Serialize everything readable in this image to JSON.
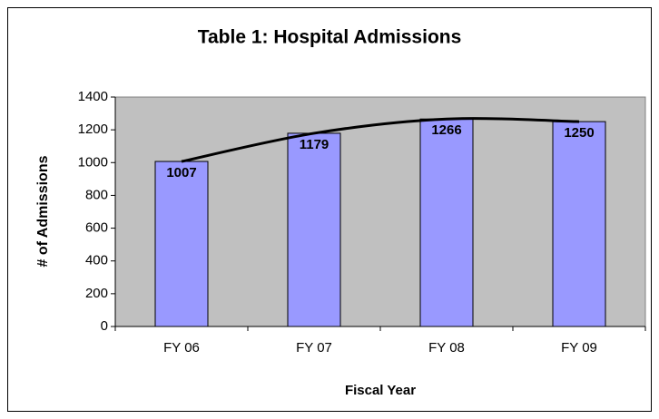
{
  "chart_data": {
    "type": "bar",
    "title": "Table 1: Hospital Admissions",
    "categories": [
      "FY 06",
      "FY 07",
      "FY 08",
      "FY 09"
    ],
    "values": [
      1007,
      1179,
      1266,
      1250
    ],
    "color": "#9999ff",
    "line_color": "#000000",
    "xlabel": "Fiscal Year",
    "ylabel": "# of Admissions",
    "ylim": [
      0,
      1400
    ],
    "yticks": [
      0,
      200,
      400,
      600,
      800,
      1000,
      1200,
      1400
    ],
    "grid": false,
    "trendline": true
  }
}
